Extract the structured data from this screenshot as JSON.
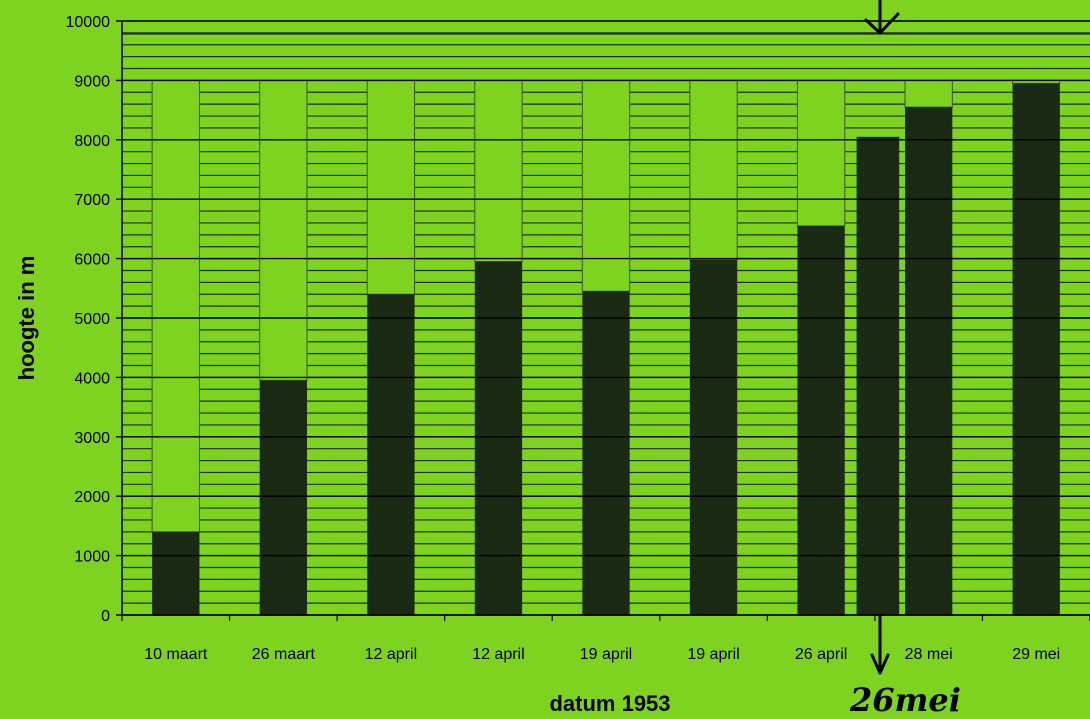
{
  "chart_data": {
    "type": "bar",
    "categories": [
      "10 maart",
      "26 maart",
      "12 april",
      "12 april",
      "19 april",
      "19 april",
      "26 april",
      "28 mei",
      "29 mei"
    ],
    "values": [
      1400,
      3950,
      5400,
      5950,
      5450,
      5980,
      6550,
      8550,
      8950
    ],
    "extra_bar": {
      "value": 8050,
      "between": [
        "26 april",
        "28 mei"
      ]
    },
    "capacity_value": 9000,
    "ylim": [
      0,
      10000
    ],
    "yticks": [
      "0",
      "1000",
      "2000",
      "3000",
      "4000",
      "5000",
      "6000",
      "7000",
      "8000",
      "9000",
      "10000"
    ],
    "xlabel": "datum 1953",
    "ylabel": "hoogte in m",
    "annotation": "26mei",
    "colors": {
      "background": "#7ed321",
      "bar": "#1b2a14",
      "capacity": "#7ed321",
      "grid": "#1f2f14"
    }
  }
}
